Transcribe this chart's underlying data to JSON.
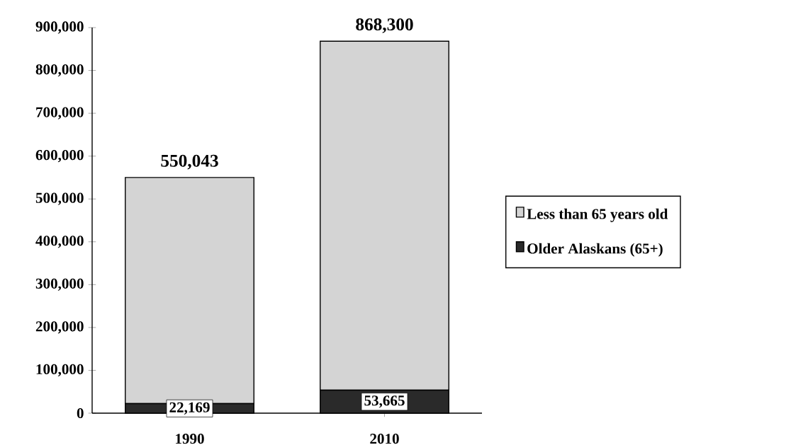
{
  "chart_data": {
    "type": "bar",
    "stacked": true,
    "categories": [
      "1990",
      "2010"
    ],
    "series": [
      {
        "name": "Older Alaskans (65+)",
        "color": "#2a2a2a",
        "values": [
          22169,
          53665
        ],
        "value_labels": [
          "22,169",
          "53,665"
        ]
      },
      {
        "name": "Less than 65 years old",
        "color": "#d4d4d4",
        "values": [
          527874,
          814635
        ]
      }
    ],
    "totals": [
      "550,043",
      "868,300"
    ],
    "ylim": [
      0,
      900000
    ],
    "yticks": [
      0,
      {
        "value": 100000,
        "label": "100,000"
      },
      {
        "value": 200000,
        "label": "200,000"
      },
      {
        "value": 300000,
        "label": "300,000"
      },
      {
        "value": 400000,
        "label": "400,000"
      },
      {
        "value": 500000,
        "label": "500,000"
      },
      {
        "value": 600000,
        "label": "600,000"
      },
      {
        "value": 700000,
        "label": "700,000"
      },
      {
        "value": 800000,
        "label": "800,000"
      },
      {
        "value": 900000,
        "label": "900,000"
      }
    ],
    "grid": false,
    "legend": "right"
  }
}
